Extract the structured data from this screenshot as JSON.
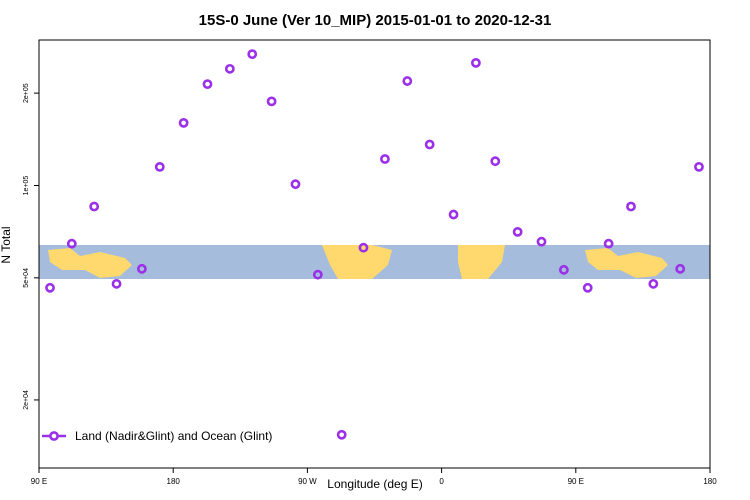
{
  "chart_data": {
    "type": "scatter",
    "title": "15S-0 June (Ver 10_MIP)   2015-01-01 to 2020-12-31",
    "x_label": "Longitude (deg E)",
    "y_label": "N Total",
    "log_y": true,
    "xlim": [
      90,
      540
    ],
    "ylim": [
      12000,
      298000
    ],
    "xticks": [
      {
        "value": 90,
        "label": "90 E"
      },
      180,
      {
        "value": 270,
        "label": "90 W"
      },
      {
        "value": 360,
        "label": "0"
      },
      {
        "value": 450,
        "label": "90 E"
      },
      {
        "value": 540,
        "label": "180"
      }
    ],
    "yticks": [
      {
        "value": 20000,
        "label": "2e+04"
      },
      {
        "value": 50000,
        "label": "5e+04"
      },
      {
        "value": 100000,
        "label": "1e+05"
      },
      {
        "value": 200000,
        "label": "2e+05"
      }
    ],
    "series": [
      {
        "name": "Land (Nadir&Glint) and Ocean (Glint)",
        "color": "#9b30e8",
        "x": [
          97.4,
          112,
          127,
          142,
          159,
          171,
          187,
          203,
          218,
          233,
          246,
          262,
          277,
          293,
          307.6,
          322,
          337,
          352,
          368,
          383,
          396,
          411,
          427,
          442,
          458,
          472,
          487,
          502,
          520,
          532.6
        ],
        "values": [
          46400,
          64600,
          85400,
          47800,
          53500,
          115000,
          160000,
          214000,
          240000,
          268000,
          188000,
          101000,
          51200,
          15400,
          62700,
          122000,
          219000,
          136000,
          80400,
          251000,
          120000,
          70600,
          65600,
          53100,
          46400,
          64600,
          85400,
          47800,
          53500,
          115000
        ]
      }
    ]
  }
}
